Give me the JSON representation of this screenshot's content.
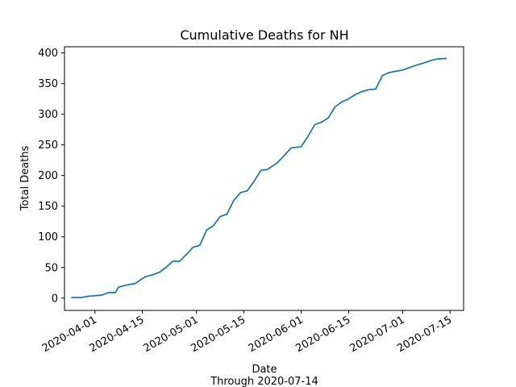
{
  "chart_data": {
    "type": "line",
    "title": "Cumulative Deaths for NH",
    "xlabel": "Date",
    "xlabel_sub": "Through 2020-07-14",
    "ylabel": "Total Deaths",
    "xlim": [
      "2020-03-23",
      "2020-07-19"
    ],
    "ylim": [
      -20,
      410
    ],
    "x_ticks": [
      "2020-04-01",
      "2020-04-15",
      "2020-05-01",
      "2020-05-15",
      "2020-06-01",
      "2020-06-15",
      "2020-07-01",
      "2020-07-15"
    ],
    "y_ticks": [
      0,
      50,
      100,
      150,
      200,
      250,
      300,
      350,
      400
    ],
    "grid": false,
    "colors": {
      "line": "#1f77b4"
    },
    "series": [
      {
        "x": [
          "2020-03-25",
          "2020-03-28",
          "2020-03-30",
          "2020-04-01",
          "2020-04-03",
          "2020-04-05",
          "2020-04-07",
          "2020-04-08",
          "2020-04-10",
          "2020-04-11",
          "2020-04-13",
          "2020-04-15",
          "2020-04-16",
          "2020-04-18",
          "2020-04-20",
          "2020-04-22",
          "2020-04-24",
          "2020-04-26",
          "2020-04-28",
          "2020-04-30",
          "2020-05-02",
          "2020-05-04",
          "2020-05-06",
          "2020-05-08",
          "2020-05-10",
          "2020-05-12",
          "2020-05-14",
          "2020-05-16",
          "2020-05-18",
          "2020-05-20",
          "2020-05-22",
          "2020-05-25",
          "2020-05-27",
          "2020-05-29",
          "2020-06-01",
          "2020-06-03",
          "2020-06-05",
          "2020-06-07",
          "2020-06-09",
          "2020-06-11",
          "2020-06-13",
          "2020-06-15",
          "2020-06-17",
          "2020-06-19",
          "2020-06-21",
          "2020-06-23",
          "2020-06-25",
          "2020-06-27",
          "2020-06-29",
          "2020-07-01",
          "2020-07-03",
          "2020-07-05",
          "2020-07-07",
          "2020-07-09",
          "2020-07-11",
          "2020-07-14"
        ],
        "y": [
          1,
          1,
          3,
          4,
          5,
          9,
          9,
          18,
          21,
          22,
          24,
          32,
          35,
          38,
          42,
          50,
          60,
          60,
          71,
          83,
          86,
          111,
          118,
          133,
          137,
          159,
          172,
          175,
          190,
          208,
          210,
          221,
          233,
          245,
          247,
          264,
          283,
          287,
          294,
          312,
          320,
          325,
          332,
          337,
          340,
          341,
          363,
          368,
          370,
          372,
          376,
          380,
          383,
          387,
          390,
          391
        ]
      }
    ]
  }
}
